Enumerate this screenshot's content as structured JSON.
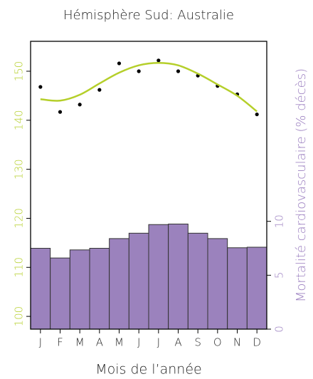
{
  "chart_data": {
    "type": "combo",
    "title": "Hémisphère Sud: Australie",
    "x_label": "Mois de l’année",
    "y2_label": "Mortalité cardiovasculaire (% décès)",
    "categories": [
      "J",
      "F",
      "M",
      "A",
      "M",
      "J",
      "J",
      "A",
      "S",
      "O",
      "N",
      "D"
    ],
    "ylim": [
      97.4,
      156.1
    ],
    "yticks": [
      100,
      110,
      120,
      130,
      140,
      150
    ],
    "y2lim": [
      0,
      26.7
    ],
    "y2ticks": [
      0,
      5,
      10
    ],
    "y_color": "#b5cf2a",
    "y2_color": "#9b7fc0",
    "series": [
      {
        "type": "bar",
        "axis": "y2",
        "color": "#9b82bd",
        "values": [
          7.5,
          6.6,
          7.35,
          7.5,
          8.4,
          8.9,
          9.7,
          9.75,
          8.9,
          8.4,
          7.55,
          7.6
        ]
      },
      {
        "type": "scatter",
        "color": "#000000",
        "values": [
          146.8,
          141.7,
          143.2,
          146.2,
          151.6,
          150,
          152.2,
          150,
          149.1,
          147,
          145.3,
          141.2
        ]
      },
      {
        "type": "line",
        "color": "#b5cf2a",
        "values": [
          144.3,
          144,
          145.2,
          147.5,
          149.7,
          151.2,
          151.7,
          151.2,
          149.5,
          147.3,
          145,
          141.8
        ]
      }
    ]
  }
}
